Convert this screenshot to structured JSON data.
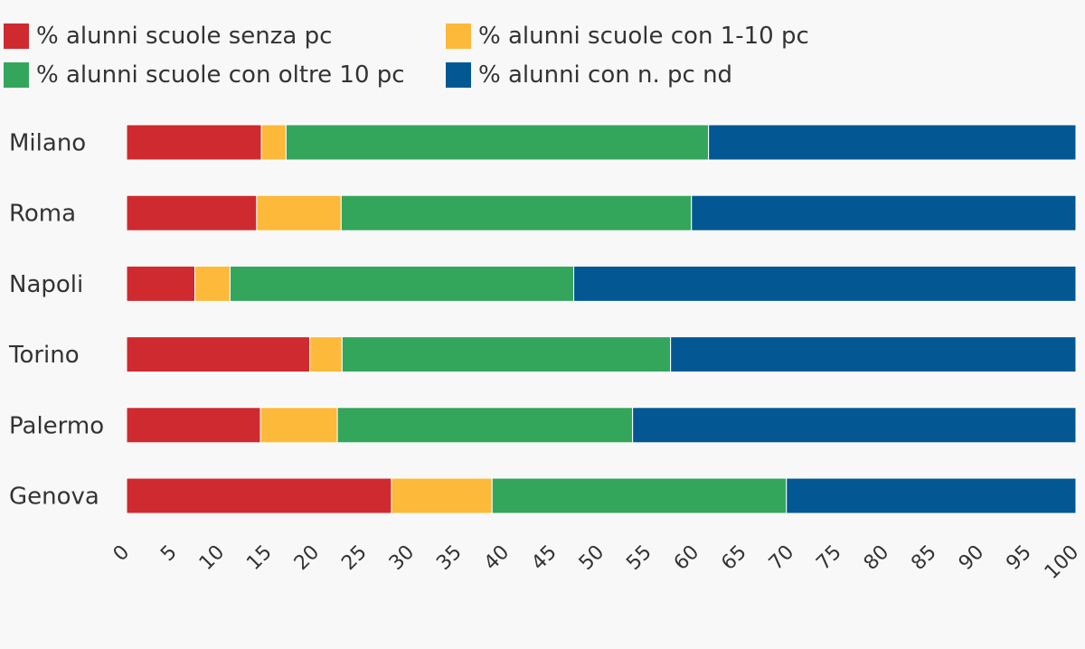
{
  "chart_data": {
    "type": "bar",
    "orientation": "horizontal",
    "stacked": true,
    "categories": [
      "Milano",
      "Roma",
      "Napoli",
      "Torino",
      "Palermo",
      "Genova"
    ],
    "series": [
      {
        "name": "% alunni scuole senza pc",
        "color": "#cf2a2f",
        "values": [
          14.2,
          13.7,
          7.2,
          19.3,
          14.1,
          27.9
        ]
      },
      {
        "name": "% alunni scuole con 1-10 pc",
        "color": "#fdb93a",
        "values": [
          2.6,
          8.9,
          3.7,
          3.4,
          8.1,
          10.6
        ]
      },
      {
        "name": "% alunni scuole con oltre 10 pc",
        "color": "#33a65b",
        "values": [
          44.5,
          36.9,
          36.2,
          34.6,
          31.1,
          31.0
        ]
      },
      {
        "name": "% alunni con n. pc nd",
        "color": "#035894",
        "values": [
          38.7,
          40.5,
          52.9,
          42.7,
          46.7,
          30.5
        ]
      }
    ],
    "xlim": [
      0,
      100
    ],
    "xticks": [
      "0",
      "5",
      "10",
      "15",
      "20",
      "25",
      "30",
      "35",
      "40",
      "45",
      "50",
      "55",
      "60",
      "65",
      "70",
      "75",
      "80",
      "85",
      "90",
      "95",
      "100"
    ],
    "legend_position": "top-left",
    "grid": false
  }
}
